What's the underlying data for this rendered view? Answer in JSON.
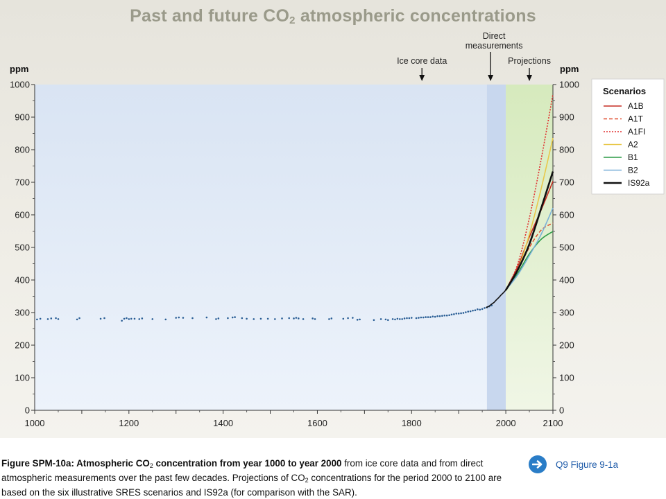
{
  "chart_data": {
    "type": "line",
    "title": {
      "pre": "Past and future CO",
      "sub": "2",
      "post": " atmospheric concentrations"
    },
    "ylabel_left": "ppm",
    "ylabel_right": "ppm",
    "xlim": [
      1000,
      2100
    ],
    "ylim": [
      0,
      1000
    ],
    "x_ticks": [
      1000,
      1200,
      1400,
      1600,
      1800,
      2000,
      2100
    ],
    "y_ticks": [
      0,
      100,
      200,
      300,
      400,
      500,
      600,
      700,
      800,
      900,
      1000
    ],
    "regions": [
      {
        "name": "ice-core",
        "from": 1000,
        "to": 1960,
        "color": "#dde7f3"
      },
      {
        "name": "direct",
        "from": 1960,
        "to": 2000,
        "color": "#c8d7ee"
      },
      {
        "name": "projections",
        "from": 2000,
        "to": 2100,
        "color": "#ddedc4"
      }
    ],
    "annotations": [
      {
        "text": "Ice core data",
        "x": 1822
      },
      {
        "lines": [
          "Direct",
          "measurements"
        ],
        "x": 1975
      },
      {
        "text": "Projections",
        "x": 2050
      }
    ],
    "ice_core_points": [
      [
        1005,
        279
      ],
      [
        1012,
        281
      ],
      [
        1028,
        280
      ],
      [
        1035,
        282
      ],
      [
        1045,
        283
      ],
      [
        1050,
        280
      ],
      [
        1090,
        279
      ],
      [
        1095,
        283
      ],
      [
        1140,
        281
      ],
      [
        1148,
        283
      ],
      [
        1185,
        275
      ],
      [
        1190,
        281
      ],
      [
        1195,
        283
      ],
      [
        1200,
        280
      ],
      [
        1205,
        281
      ],
      [
        1212,
        281
      ],
      [
        1222,
        280
      ],
      [
        1228,
        282
      ],
      [
        1250,
        280
      ],
      [
        1278,
        279
      ],
      [
        1300,
        284
      ],
      [
        1306,
        285
      ],
      [
        1315,
        284
      ],
      [
        1335,
        283
      ],
      [
        1365,
        285
      ],
      [
        1385,
        280
      ],
      [
        1390,
        282
      ],
      [
        1410,
        283
      ],
      [
        1420,
        285
      ],
      [
        1425,
        286
      ],
      [
        1440,
        283
      ],
      [
        1450,
        281
      ],
      [
        1465,
        280
      ],
      [
        1480,
        281
      ],
      [
        1495,
        281
      ],
      [
        1510,
        280
      ],
      [
        1525,
        282
      ],
      [
        1540,
        283
      ],
      [
        1550,
        282
      ],
      [
        1555,
        284
      ],
      [
        1560,
        282
      ],
      [
        1570,
        280
      ],
      [
        1590,
        282
      ],
      [
        1595,
        280
      ],
      [
        1625,
        280
      ],
      [
        1630,
        282
      ],
      [
        1655,
        281
      ],
      [
        1665,
        283
      ],
      [
        1675,
        284
      ],
      [
        1685,
        278
      ],
      [
        1690,
        279
      ],
      [
        1720,
        277
      ],
      [
        1735,
        280
      ],
      [
        1745,
        279
      ],
      [
        1750,
        277
      ],
      [
        1760,
        280
      ],
      [
        1765,
        279
      ],
      [
        1770,
        281
      ],
      [
        1775,
        280
      ],
      [
        1780,
        280
      ],
      [
        1785,
        282
      ],
      [
        1790,
        283
      ],
      [
        1795,
        283
      ],
      [
        1800,
        284
      ],
      [
        1810,
        283
      ],
      [
        1815,
        284
      ],
      [
        1820,
        285
      ],
      [
        1825,
        285
      ],
      [
        1830,
        286
      ],
      [
        1835,
        286
      ],
      [
        1840,
        286
      ],
      [
        1845,
        288
      ],
      [
        1850,
        287
      ],
      [
        1855,
        289
      ],
      [
        1860,
        289
      ],
      [
        1865,
        290
      ],
      [
        1870,
        291
      ],
      [
        1875,
        291
      ],
      [
        1880,
        292
      ],
      [
        1885,
        294
      ],
      [
        1890,
        295
      ],
      [
        1895,
        297
      ],
      [
        1900,
        297
      ],
      [
        1905,
        298
      ],
      [
        1910,
        299
      ],
      [
        1915,
        301
      ],
      [
        1920,
        303
      ],
      [
        1925,
        304
      ],
      [
        1930,
        306
      ],
      [
        1935,
        307
      ],
      [
        1940,
        310
      ],
      [
        1945,
        309
      ],
      [
        1950,
        311
      ],
      [
        1955,
        314
      ],
      [
        1960,
        316
      ],
      [
        1965,
        319
      ],
      [
        1970,
        322
      ]
    ],
    "direct_measurements": {
      "x": [
        1958,
        1965,
        1970,
        1975,
        1980,
        1985,
        1990,
        1995,
        2000
      ],
      "y": [
        315,
        320,
        326,
        331,
        339,
        346,
        354,
        361,
        369
      ]
    },
    "series": [
      {
        "name": "A1B",
        "color": "#c62b22",
        "style": "solid",
        "width": 1.6,
        "x": [
          2000,
          2025,
          2050,
          2075,
          2100
        ],
        "y": [
          369,
          440,
          532,
          615,
          703
        ]
      },
      {
        "name": "A1T",
        "color": "#e04a2a",
        "style": "dashed",
        "width": 1.5,
        "x": [
          2000,
          2025,
          2050,
          2075,
          2100
        ],
        "y": [
          369,
          430,
          500,
          553,
          575
        ]
      },
      {
        "name": "A1FI",
        "color": "#e02e2e",
        "style": "dotted",
        "width": 1.6,
        "x": [
          2000,
          2025,
          2050,
          2075,
          2100
        ],
        "y": [
          369,
          448,
          590,
          770,
          970
        ]
      },
      {
        "name": "A2",
        "color": "#e8c84a",
        "style": "solid",
        "width": 1.6,
        "x": [
          2000,
          2025,
          2050,
          2075,
          2100
        ],
        "y": [
          369,
          430,
          540,
          680,
          836
        ]
      },
      {
        "name": "B1",
        "color": "#2a9a45",
        "style": "solid",
        "width": 1.6,
        "x": [
          2000,
          2025,
          2050,
          2075,
          2100
        ],
        "y": [
          369,
          420,
          480,
          525,
          549
        ]
      },
      {
        "name": "B2",
        "color": "#7ab0d8",
        "style": "solid",
        "width": 1.6,
        "x": [
          2000,
          2025,
          2050,
          2075,
          2100
        ],
        "y": [
          369,
          415,
          475,
          540,
          621
        ]
      },
      {
        "name": "IS92a",
        "color": "#111111",
        "style": "solid",
        "width": 2.6,
        "x": [
          2000,
          2025,
          2050,
          2075,
          2100
        ],
        "y": [
          369,
          430,
          510,
          620,
          733
        ]
      }
    ],
    "legend": {
      "title": "Scenarios",
      "placement": "right"
    }
  },
  "caption": {
    "bold_1": "Figure SPM-10a: Atmospheric CO",
    "sub_1": "2",
    "bold_2": " concentration from year 1000 to year 2000",
    "text_1": " from ice core data and from direct atmospheric measurements over the past few decades. Projections of CO",
    "sub_2": "2",
    "text_2": " concentrations for the period 2000 to 2100 are based on the six illustrative SRES scenarios and IS92a (for comparison with the SAR)."
  },
  "link": {
    "label": "Q9 Figure 9-1a",
    "icon": "arrow-right-icon"
  }
}
